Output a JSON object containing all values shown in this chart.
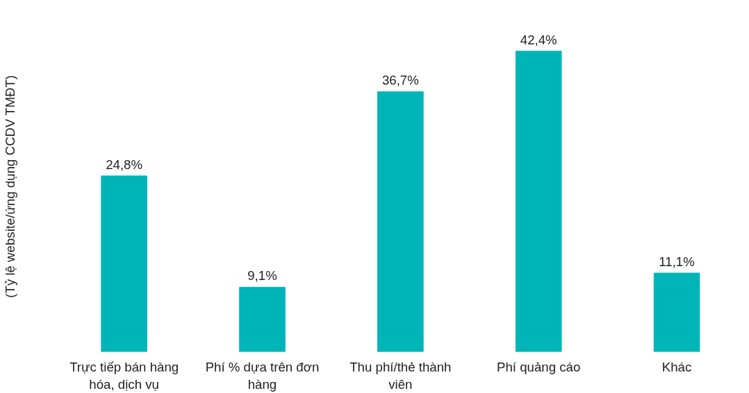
{
  "chart_data": {
    "type": "bar",
    "ylabel": "(Tỷ lệ website/ứng dụng CCDV TMĐT)",
    "categories": [
      "Trực tiếp bán hàng hóa, dịch vụ",
      "Phí % dựa trên đơn hàng",
      "Thu phí/thẻ thành viên",
      "Phí quảng cáo",
      "Khác"
    ],
    "values": [
      24.8,
      9.1,
      36.7,
      42.4,
      11.1
    ],
    "value_labels": [
      "24,8%",
      "9,1%",
      "36,7%",
      "42,4%",
      "11,1%"
    ],
    "color": "#00b5b8",
    "grid": false,
    "tick_labels": "x"
  }
}
